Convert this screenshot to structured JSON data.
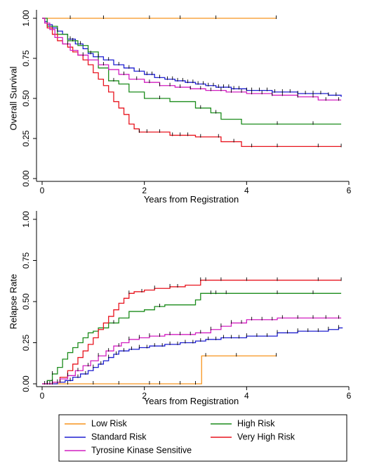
{
  "chart_data": [
    {
      "type": "line",
      "subtype": "step",
      "xlabel": "Years from Registration",
      "ylabel": "Overall Survival",
      "xlim": [
        0,
        6
      ],
      "ylim": [
        0,
        1
      ],
      "xticks": [
        "0",
        "2",
        "4",
        "6"
      ],
      "yticks": [
        "0.00",
        "0.25",
        "0.50",
        "0.75",
        "1.00"
      ],
      "grid": false,
      "series": [
        {
          "name": "Low Risk",
          "color": "#f7941d",
          "points": [
            [
              0,
              1.0
            ],
            [
              4.58,
              1.0
            ]
          ],
          "censor": [
            0.55,
            1.2,
            2.1,
            2.7,
            3.4,
            4.58
          ]
        },
        {
          "name": "Standard Risk",
          "color": "#1f1fd0",
          "points": [
            [
              0,
              1.0
            ],
            [
              0.05,
              0.98
            ],
            [
              0.1,
              0.96
            ],
            [
              0.2,
              0.94
            ],
            [
              0.3,
              0.92
            ],
            [
              0.4,
              0.9
            ],
            [
              0.5,
              0.87
            ],
            [
              0.65,
              0.84
            ],
            [
              0.8,
              0.81
            ],
            [
              0.9,
              0.78
            ],
            [
              1.0,
              0.76
            ],
            [
              1.2,
              0.74
            ],
            [
              1.4,
              0.71
            ],
            [
              1.6,
              0.69
            ],
            [
              1.8,
              0.67
            ],
            [
              2.0,
              0.65
            ],
            [
              2.2,
              0.63
            ],
            [
              2.4,
              0.62
            ],
            [
              2.6,
              0.61
            ],
            [
              2.8,
              0.6
            ],
            [
              3.0,
              0.59
            ],
            [
              3.2,
              0.58
            ],
            [
              3.4,
              0.57
            ],
            [
              3.7,
              0.56
            ],
            [
              4.0,
              0.55
            ],
            [
              4.5,
              0.54
            ],
            [
              5.0,
              0.53
            ],
            [
              5.6,
              0.52
            ],
            [
              5.85,
              0.51
            ]
          ],
          "censor": [
            0.3,
            0.55,
            0.75,
            0.95,
            1.1,
            1.3,
            1.5,
            1.7,
            1.9,
            2.05,
            2.15,
            2.3,
            2.45,
            2.55,
            2.65,
            2.75,
            2.85,
            2.95,
            3.05,
            3.15,
            3.25,
            3.35,
            3.45,
            3.55,
            3.65,
            3.75,
            3.85,
            4.0,
            4.1,
            4.25,
            4.4,
            4.55,
            4.7,
            4.85,
            5.0,
            5.15,
            5.3,
            5.45,
            5.6,
            5.75
          ]
        },
        {
          "name": "High Risk",
          "color": "#1c8c1c",
          "points": [
            [
              0,
              1.0
            ],
            [
              0.1,
              0.95
            ],
            [
              0.3,
              0.9
            ],
            [
              0.5,
              0.86
            ],
            [
              0.7,
              0.83
            ],
            [
              0.9,
              0.79
            ],
            [
              1.1,
              0.69
            ],
            [
              1.3,
              0.61
            ],
            [
              1.5,
              0.59
            ],
            [
              1.7,
              0.54
            ],
            [
              2.0,
              0.5
            ],
            [
              2.5,
              0.48
            ],
            [
              3.0,
              0.44
            ],
            [
              3.3,
              0.41
            ],
            [
              3.5,
              0.37
            ],
            [
              3.9,
              0.34
            ],
            [
              5.85,
              0.34
            ]
          ],
          "censor": [
            0.6,
            1.4,
            2.3,
            3.1,
            3.4,
            4.6,
            5.3
          ]
        },
        {
          "name": "Very High Risk",
          "color": "#e8141e",
          "points": [
            [
              0,
              1.0
            ],
            [
              0.05,
              0.97
            ],
            [
              0.1,
              0.94
            ],
            [
              0.2,
              0.9
            ],
            [
              0.3,
              0.86
            ],
            [
              0.4,
              0.84
            ],
            [
              0.5,
              0.82
            ],
            [
              0.6,
              0.79
            ],
            [
              0.7,
              0.77
            ],
            [
              0.8,
              0.74
            ],
            [
              0.9,
              0.71
            ],
            [
              1.0,
              0.66
            ],
            [
              1.1,
              0.62
            ],
            [
              1.2,
              0.58
            ],
            [
              1.3,
              0.54
            ],
            [
              1.4,
              0.48
            ],
            [
              1.5,
              0.44
            ],
            [
              1.6,
              0.4
            ],
            [
              1.7,
              0.34
            ],
            [
              1.8,
              0.31
            ],
            [
              1.9,
              0.29
            ],
            [
              2.4,
              0.29
            ],
            [
              2.5,
              0.27
            ],
            [
              3.0,
              0.26
            ],
            [
              3.5,
              0.23
            ],
            [
              3.9,
              0.2
            ],
            [
              5.85,
              0.2
            ]
          ],
          "censor": [
            1.9,
            2.05,
            2.3,
            2.55,
            2.7,
            2.85,
            3.1,
            3.45,
            3.75,
            4.1,
            4.6,
            5.4,
            5.85
          ]
        },
        {
          "name": "Tyrosine Kinase Sensitive",
          "color": "#d21fc0",
          "points": [
            [
              0,
              1.0
            ],
            [
              0.05,
              0.97
            ],
            [
              0.15,
              0.93
            ],
            [
              0.25,
              0.88
            ],
            [
              0.4,
              0.84
            ],
            [
              0.55,
              0.8
            ],
            [
              0.7,
              0.77
            ],
            [
              0.9,
              0.74
            ],
            [
              1.1,
              0.71
            ],
            [
              1.3,
              0.68
            ],
            [
              1.5,
              0.65
            ],
            [
              1.7,
              0.62
            ],
            [
              2.0,
              0.6
            ],
            [
              2.3,
              0.58
            ],
            [
              2.6,
              0.57
            ],
            [
              2.9,
              0.56
            ],
            [
              3.2,
              0.55
            ],
            [
              3.6,
              0.54
            ],
            [
              4.0,
              0.53
            ],
            [
              4.5,
              0.52
            ],
            [
              5.0,
              0.51
            ],
            [
              5.4,
              0.49
            ],
            [
              5.85,
              0.49
            ]
          ],
          "censor": [
            0.5,
            0.8,
            1.2,
            1.6,
            1.85,
            2.1,
            2.3,
            2.5,
            2.7,
            2.9,
            3.1,
            3.3,
            3.5,
            3.7,
            3.9,
            4.1,
            4.3,
            4.5,
            4.7,
            5.0,
            5.3,
            5.55,
            5.8
          ]
        }
      ]
    },
    {
      "type": "line",
      "subtype": "step",
      "xlabel": "Years from Registration",
      "ylabel": "Relapse Rate",
      "xlim": [
        0,
        6
      ],
      "ylim": [
        0,
        1
      ],
      "xticks": [
        "0",
        "2",
        "4",
        "6"
      ],
      "yticks": [
        "0.00",
        "0.25",
        "0.50",
        "0.75",
        "1.00"
      ],
      "grid": false,
      "series": [
        {
          "name": "Low Risk",
          "color": "#f7941d",
          "points": [
            [
              0,
              0.0
            ],
            [
              3.1,
              0.0
            ],
            [
              3.12,
              0.17
            ],
            [
              4.58,
              0.17
            ]
          ],
          "censor": [
            0.2,
            0.5,
            1.0,
            1.5,
            2.1,
            2.3,
            2.7,
            3.0,
            3.2,
            3.8,
            4.58
          ]
        },
        {
          "name": "Standard Risk",
          "color": "#1f1fd0",
          "points": [
            [
              0,
              0.0
            ],
            [
              0.3,
              0.01
            ],
            [
              0.45,
              0.02
            ],
            [
              0.6,
              0.04
            ],
            [
              0.75,
              0.06
            ],
            [
              0.9,
              0.08
            ],
            [
              1.0,
              0.1
            ],
            [
              1.1,
              0.12
            ],
            [
              1.2,
              0.14
            ],
            [
              1.3,
              0.16
            ],
            [
              1.4,
              0.18
            ],
            [
              1.5,
              0.2
            ],
            [
              1.7,
              0.21
            ],
            [
              1.9,
              0.22
            ],
            [
              2.1,
              0.23
            ],
            [
              2.4,
              0.24
            ],
            [
              2.7,
              0.25
            ],
            [
              3.0,
              0.26
            ],
            [
              3.2,
              0.27
            ],
            [
              3.5,
              0.28
            ],
            [
              4.0,
              0.29
            ],
            [
              4.6,
              0.31
            ],
            [
              5.0,
              0.32
            ],
            [
              5.6,
              0.33
            ],
            [
              5.8,
              0.34
            ],
            [
              5.88,
              0.34
            ]
          ],
          "censor": [
            0.15,
            0.35,
            0.55,
            0.7,
            0.85,
            1.0,
            1.15,
            1.3,
            1.45,
            1.6,
            1.75,
            1.9,
            2.05,
            2.2,
            2.35,
            2.5,
            2.65,
            2.8,
            2.95,
            3.1,
            3.25,
            3.4,
            3.55,
            3.7,
            3.85,
            4.0,
            4.2,
            4.4,
            4.6,
            4.8,
            5.0,
            5.2,
            5.4,
            5.6,
            5.8
          ]
        },
        {
          "name": "High Risk",
          "color": "#1c8c1c",
          "points": [
            [
              0,
              0.0
            ],
            [
              0.1,
              0.02
            ],
            [
              0.2,
              0.06
            ],
            [
              0.3,
              0.1
            ],
            [
              0.4,
              0.15
            ],
            [
              0.5,
              0.19
            ],
            [
              0.6,
              0.22
            ],
            [
              0.7,
              0.25
            ],
            [
              0.8,
              0.28
            ],
            [
              0.9,
              0.31
            ],
            [
              1.0,
              0.32
            ],
            [
              1.1,
              0.34
            ],
            [
              1.3,
              0.37
            ],
            [
              1.5,
              0.4
            ],
            [
              1.7,
              0.44
            ],
            [
              2.0,
              0.45
            ],
            [
              2.2,
              0.47
            ],
            [
              2.4,
              0.48
            ],
            [
              3.0,
              0.51
            ],
            [
              3.1,
              0.55
            ],
            [
              5.85,
              0.55
            ]
          ],
          "censor": [
            0.05,
            0.2,
            1.4,
            2.3,
            3.3,
            3.4,
            3.6,
            4.6,
            5.3
          ]
        },
        {
          "name": "Very High Risk",
          "color": "#e8141e",
          "points": [
            [
              0,
              0.0
            ],
            [
              0.2,
              0.01
            ],
            [
              0.35,
              0.04
            ],
            [
              0.5,
              0.08
            ],
            [
              0.6,
              0.12
            ],
            [
              0.7,
              0.16
            ],
            [
              0.8,
              0.2
            ],
            [
              0.9,
              0.24
            ],
            [
              1.0,
              0.28
            ],
            [
              1.1,
              0.33
            ],
            [
              1.2,
              0.37
            ],
            [
              1.3,
              0.41
            ],
            [
              1.4,
              0.45
            ],
            [
              1.5,
              0.49
            ],
            [
              1.6,
              0.52
            ],
            [
              1.7,
              0.55
            ],
            [
              1.8,
              0.56
            ],
            [
              2.0,
              0.57
            ],
            [
              2.2,
              0.58
            ],
            [
              2.5,
              0.59
            ],
            [
              2.8,
              0.6
            ],
            [
              3.1,
              0.63
            ],
            [
              5.85,
              0.63
            ]
          ],
          "censor": [
            0.1,
            0.2,
            1.7,
            1.95,
            2.2,
            2.5,
            2.65,
            3.1,
            3.2,
            3.5,
            4.0,
            4.6,
            5.4,
            5.85
          ]
        },
        {
          "name": "Tyrosine Kinase Sensitive",
          "color": "#d21fc0",
          "points": [
            [
              0,
              0.0
            ],
            [
              0.2,
              0.01
            ],
            [
              0.35,
              0.03
            ],
            [
              0.5,
              0.05
            ],
            [
              0.65,
              0.08
            ],
            [
              0.8,
              0.11
            ],
            [
              0.95,
              0.14
            ],
            [
              1.1,
              0.17
            ],
            [
              1.25,
              0.2
            ],
            [
              1.4,
              0.23
            ],
            [
              1.55,
              0.25
            ],
            [
              1.7,
              0.27
            ],
            [
              1.9,
              0.28
            ],
            [
              2.1,
              0.29
            ],
            [
              2.4,
              0.3
            ],
            [
              2.8,
              0.3
            ],
            [
              3.0,
              0.31
            ],
            [
              3.3,
              0.33
            ],
            [
              3.5,
              0.35
            ],
            [
              3.7,
              0.37
            ],
            [
              4.0,
              0.39
            ],
            [
              4.6,
              0.4
            ],
            [
              5.85,
              0.4
            ]
          ],
          "censor": [
            0.1,
            0.3,
            0.5,
            0.7,
            0.9,
            1.1,
            1.3,
            1.5,
            1.7,
            1.9,
            2.1,
            2.3,
            2.5,
            2.7,
            2.9,
            3.1,
            3.3,
            3.5,
            3.7,
            3.9,
            4.1,
            4.3,
            4.5,
            4.7,
            5.0,
            5.3,
            5.55,
            5.8
          ]
        }
      ]
    }
  ],
  "legend": {
    "placement": "bottom",
    "entries": [
      {
        "name": "Low Risk",
        "color": "#f7941d"
      },
      {
        "name": "High Risk",
        "color": "#1c8c1c"
      },
      {
        "name": "Standard Risk",
        "color": "#1f1fd0"
      },
      {
        "name": "Very High Risk",
        "color": "#e8141e"
      },
      {
        "name": "Tyrosine Kinase Sensitive",
        "color": "#d21fc0"
      }
    ]
  }
}
